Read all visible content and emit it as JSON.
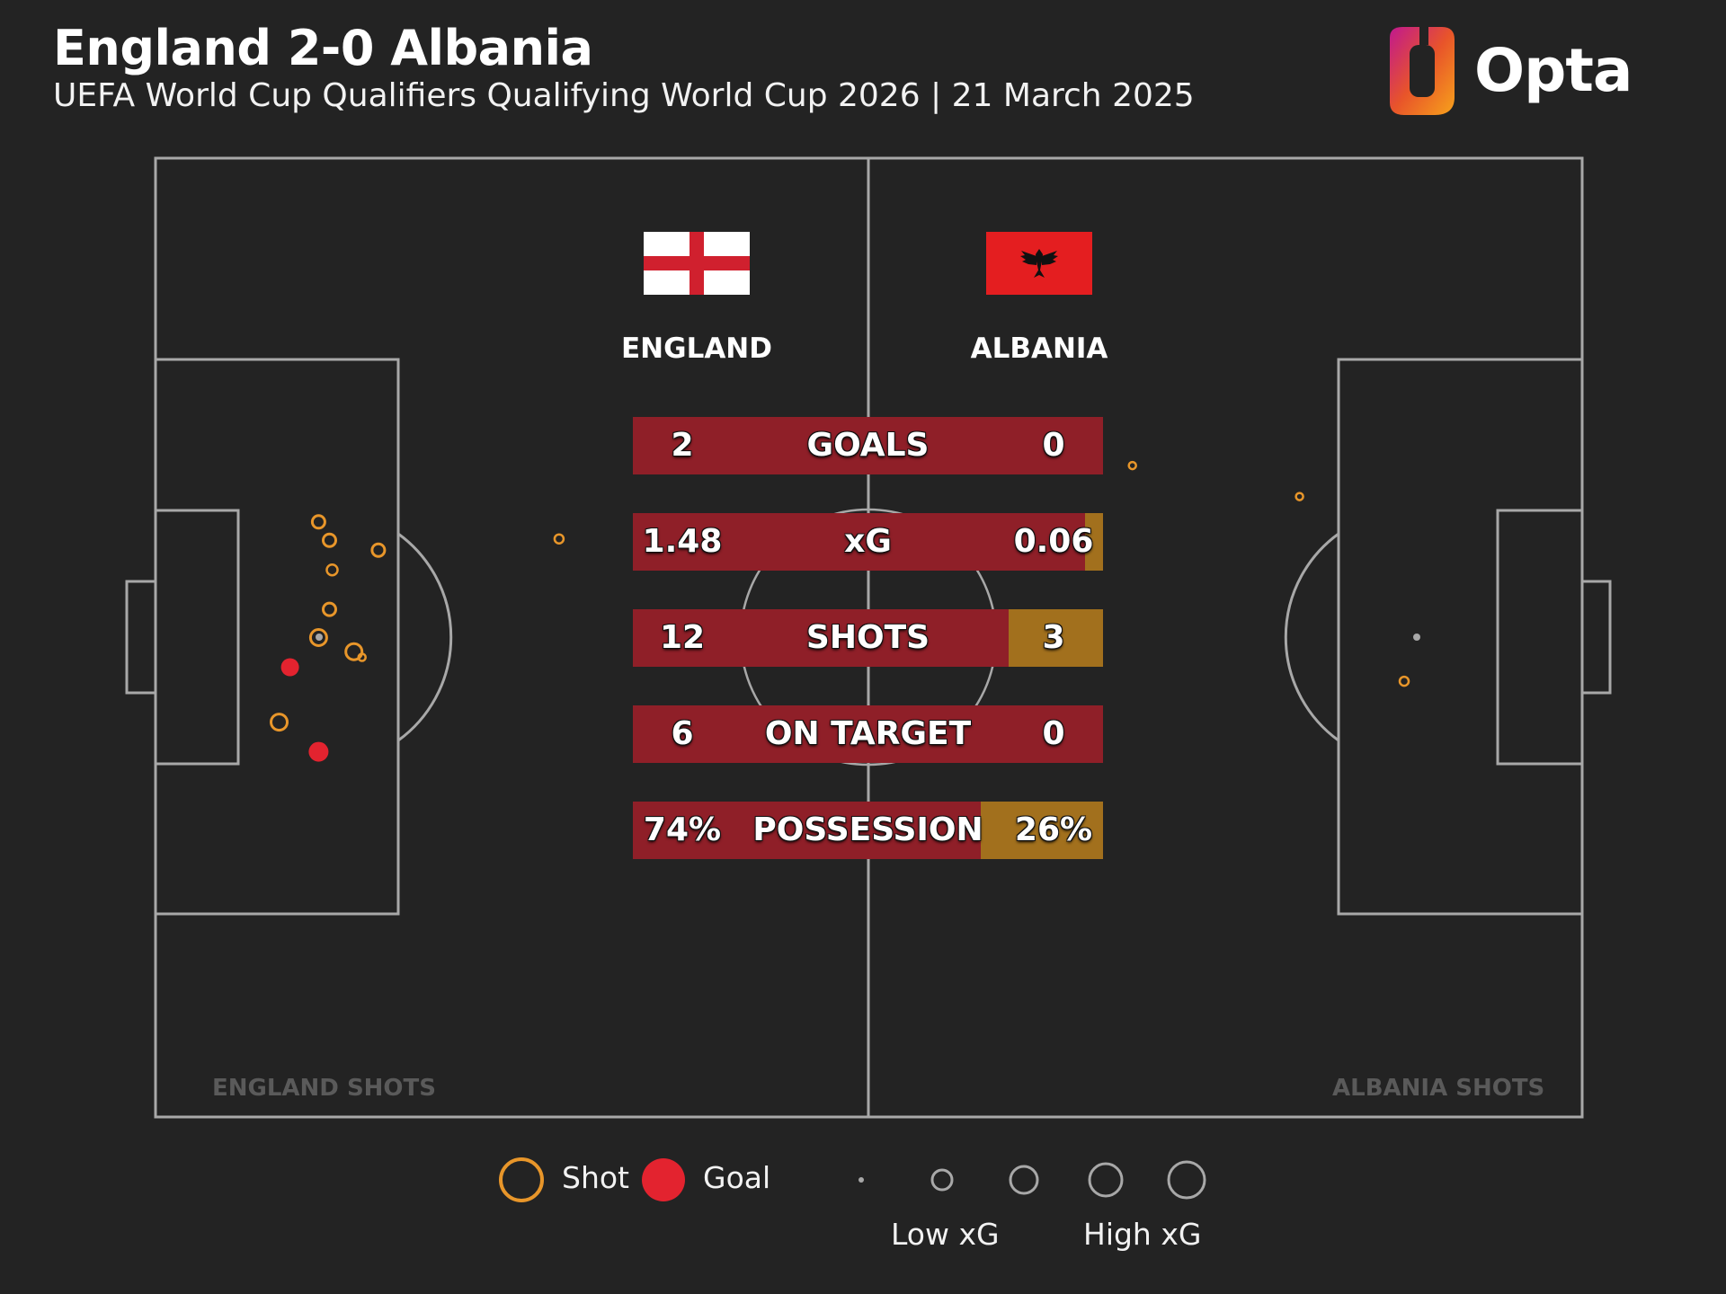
{
  "header": {
    "title": "England 2-0 Albania",
    "subtitle": "UEFA World Cup Qualifiers Qualifying World Cup 2026 | 21 March 2025",
    "brand": "Opta"
  },
  "teams": {
    "home": {
      "name": "ENGLAND",
      "shots_label": "ENGLAND SHOTS"
    },
    "away": {
      "name": "ALBANIA",
      "shots_label": "ALBANIA SHOTS"
    }
  },
  "stats": [
    {
      "label": "GOALS",
      "home": "2",
      "away": "0",
      "away_share": 0
    },
    {
      "label": "xG",
      "home": "1.48",
      "away": "0.06",
      "away_share": 0.039
    },
    {
      "label": "SHOTS",
      "home": "12",
      "away": "3",
      "away_share": 0.2
    },
    {
      "label": "ON TARGET",
      "home": "6",
      "away": "0",
      "away_share": 0
    },
    {
      "label": "POSSESSION",
      "home": "74%",
      "away": "26%",
      "away_share": 0.26
    }
  ],
  "legend": {
    "shot": "Shot",
    "goal": "Goal",
    "low_xg": "Low xG",
    "high_xg": "High xG"
  },
  "colors": {
    "background": "#232323",
    "pitch_lines": "#a8a8a8",
    "shot": "#e8962a",
    "goal": "#e3232f",
    "bar_home": "#8f1f28",
    "bar_away": "#a2701d"
  },
  "chart_data": {
    "type": "scatter",
    "pitch_dimensions_m": [
      105,
      68
    ],
    "shots_home": [
      {
        "x": 89.8,
        "y": 32.6,
        "outcome": "shot"
      },
      {
        "x": 92.0,
        "y": 38.8,
        "outcome": "shot"
      },
      {
        "x": 92.2,
        "y": 40.9,
        "outcome": "shot"
      },
      {
        "x": 90.4,
        "y": 33.0,
        "outcome": "shot"
      },
      {
        "x": 93.0,
        "y": 34.0,
        "outcome": "shot"
      },
      {
        "x": 92.2,
        "y": 36.0,
        "outcome": "shot"
      },
      {
        "x": 93.0,
        "y": 42.2,
        "outcome": "shot"
      },
      {
        "x": 95.1,
        "y": 31.9,
        "outcome": "goal"
      },
      {
        "x": 95.9,
        "y": 28.0,
        "outcome": "shot"
      },
      {
        "x": 93.0,
        "y": 25.9,
        "outcome": "goal"
      },
      {
        "x": 88.6,
        "y": 40.2,
        "outcome": "shot"
      },
      {
        "x": 75.3,
        "y": 41.0,
        "outcome": "shot"
      }
    ],
    "shots_away": [
      {
        "x": 84.2,
        "y": 44.0,
        "outcome": "shot"
      },
      {
        "x": 71.9,
        "y": 46.2,
        "outcome": "shot"
      },
      {
        "x": 91.9,
        "y": 30.9,
        "outcome": "shot"
      }
    ]
  }
}
